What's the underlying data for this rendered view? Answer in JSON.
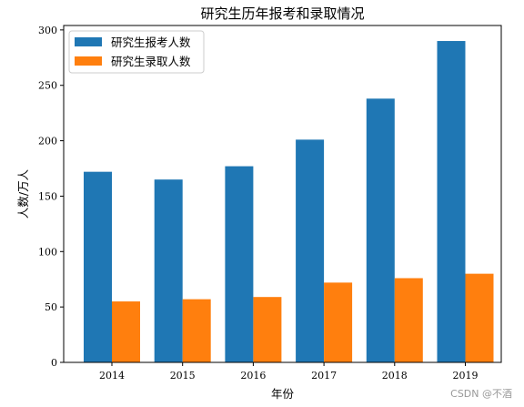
{
  "chart_data": {
    "type": "bar",
    "title": "研究生历年报考和录取情况",
    "xlabel": "年份",
    "ylabel": "人数/万人",
    "categories": [
      "2014",
      "2015",
      "2016",
      "2017",
      "2018",
      "2019"
    ],
    "series": [
      {
        "name": "研究生报考人数",
        "color": "#1f77b4",
        "values": [
          172,
          165,
          177,
          201,
          238,
          290
        ]
      },
      {
        "name": "研究生录取人数",
        "color": "#ff7f0e",
        "values": [
          55,
          57,
          59,
          72,
          76,
          80
        ]
      }
    ],
    "ylim": [
      0,
      304
    ],
    "yticks": [
      0,
      50,
      100,
      150,
      200,
      250,
      300
    ],
    "grid": false,
    "legend_position": "top-left"
  },
  "watermark": "CSDN @不酒"
}
